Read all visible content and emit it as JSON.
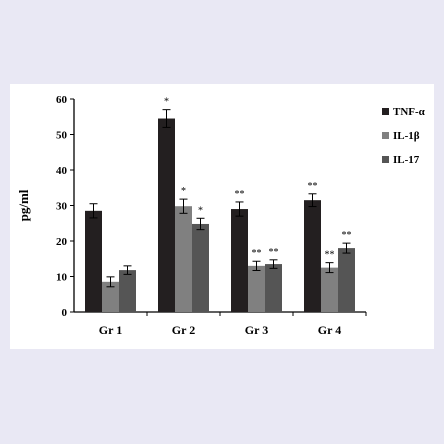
{
  "chart_data": {
    "type": "bar",
    "title": "",
    "xlabel": "",
    "ylabel": "pg/ml",
    "ylim": [
      0,
      60
    ],
    "yticks": [
      0,
      10,
      20,
      30,
      40,
      50,
      60
    ],
    "grid": false,
    "legend_position": "right",
    "categories": [
      "Gr 1",
      "Gr 2",
      "Gr 3",
      "Gr 4"
    ],
    "series": [
      {
        "name": "TNF-α",
        "color": "#231f20",
        "values": [
          28.5,
          54.5,
          29,
          31.5
        ],
        "errors": [
          2,
          2.5,
          2,
          1.8
        ],
        "significance": [
          "",
          "*",
          "**",
          "**"
        ]
      },
      {
        "name": "IL-1β",
        "color": "#808080",
        "values": [
          8.5,
          29.8,
          13,
          12.5
        ],
        "errors": [
          1.4,
          2,
          1.3,
          1.4
        ],
        "significance": [
          "",
          "*",
          "**",
          "**"
        ]
      },
      {
        "name": "IL-17",
        "color": "#555555",
        "values": [
          11.8,
          24.8,
          13.5,
          18
        ],
        "errors": [
          1.2,
          1.6,
          1.2,
          1.4
        ],
        "significance": [
          "",
          "*",
          "**",
          "**"
        ]
      }
    ]
  }
}
